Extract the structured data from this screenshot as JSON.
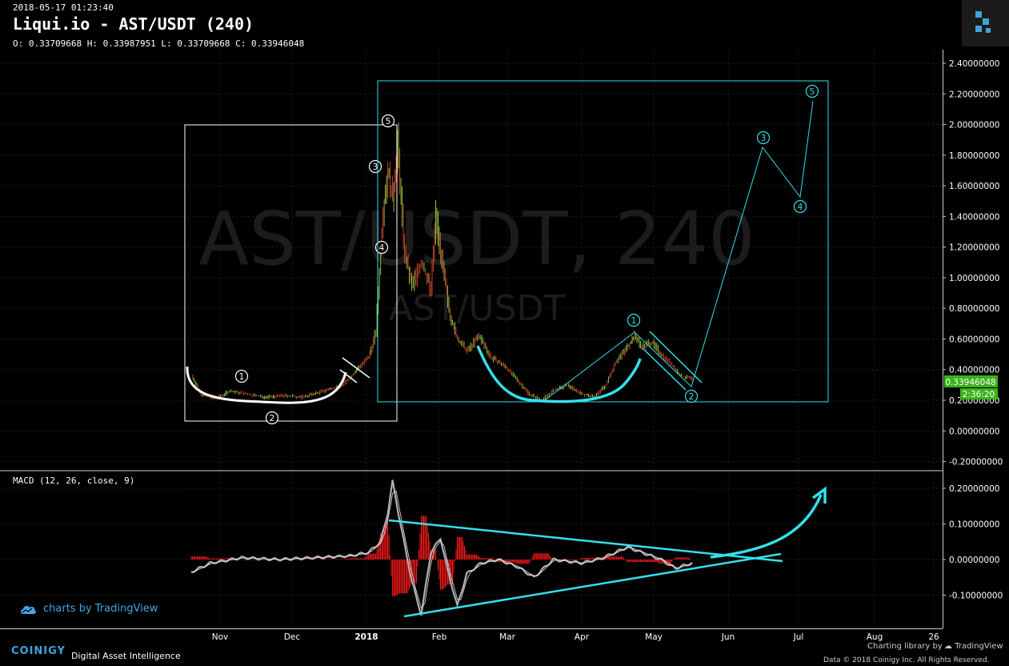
{
  "header": {
    "timestamp": "2018-05-17 01:23:40",
    "title": "Liqui.io - AST/USDT (240)",
    "ohlc": "O: 0.33709668 H: 0.33987951 L: 0.33709668 C: 0.33946048"
  },
  "watermark": {
    "main": "AST/USDT, 240",
    "sub": "AST/USDT"
  },
  "price_badge": {
    "value": "0.33946048",
    "countdown": "2:36:20",
    "color": "#3bb21a"
  },
  "macd_label": "MACD (12, 26, close, 9)",
  "footer": {
    "tv_badge": "charts by TradingView",
    "brand": "COINIGY",
    "tagline": "Digital Asset Intelligence",
    "charting_lib": "Charting library by",
    "tv_brand": "TradingView",
    "copyright": "Data © 2018  Coinigy Inc. All Rights Reserved."
  },
  "colors": {
    "background": "#000000",
    "annotation": "#33e0ec",
    "annotation_white": "#ffffff",
    "macd_hist": "#ff0000",
    "macd_line": "#b0b0b0"
  },
  "chart_data": [
    {
      "type": "candlestick",
      "x_ticks": [
        "Nov",
        "Dec",
        "2018",
        "Feb",
        "Mar",
        "Apr",
        "May",
        "Jun",
        "Jul",
        "Aug",
        "26"
      ],
      "y_ticks": [
        "2.40000000",
        "2.20000000",
        "2.00000000",
        "1.80000000",
        "1.60000000",
        "1.40000000",
        "1.20000000",
        "1.00000000",
        "0.80000000",
        "0.60000000",
        "0.40000000",
        "0.20000000",
        "0.00000000",
        "-0.20000000"
      ],
      "ylim": [
        -0.2,
        2.45
      ],
      "price_path": [
        {
          "d": "2017-10-20",
          "v": 0.36
        },
        {
          "d": "2017-10-24",
          "v": 0.24
        },
        {
          "d": "2017-10-30",
          "v": 0.21
        },
        {
          "d": "2017-11-05",
          "v": 0.26
        },
        {
          "d": "2017-11-12",
          "v": 0.24
        },
        {
          "d": "2017-11-20",
          "v": 0.22
        },
        {
          "d": "2017-11-28",
          "v": 0.23
        },
        {
          "d": "2017-12-05",
          "v": 0.22
        },
        {
          "d": "2017-12-12",
          "v": 0.25
        },
        {
          "d": "2017-12-18",
          "v": 0.28
        },
        {
          "d": "2017-12-22",
          "v": 0.3
        },
        {
          "d": "2017-12-26",
          "v": 0.36
        },
        {
          "d": "2017-12-29",
          "v": 0.42
        },
        {
          "d": "2018-01-02",
          "v": 0.48
        },
        {
          "d": "2018-01-05",
          "v": 0.65
        },
        {
          "d": "2018-01-08",
          "v": 1.45
        },
        {
          "d": "2018-01-10",
          "v": 1.7
        },
        {
          "d": "2018-01-12",
          "v": 1.5
        },
        {
          "d": "2018-01-14",
          "v": 1.88
        },
        {
          "d": "2018-01-17",
          "v": 1.15
        },
        {
          "d": "2018-01-20",
          "v": 0.95
        },
        {
          "d": "2018-01-24",
          "v": 1.1
        },
        {
          "d": "2018-01-28",
          "v": 0.92
        },
        {
          "d": "2018-01-30",
          "v": 1.42
        },
        {
          "d": "2018-02-02",
          "v": 1.05
        },
        {
          "d": "2018-02-05",
          "v": 0.75
        },
        {
          "d": "2018-02-08",
          "v": 0.6
        },
        {
          "d": "2018-02-12",
          "v": 0.52
        },
        {
          "d": "2018-02-17",
          "v": 0.62
        },
        {
          "d": "2018-02-22",
          "v": 0.48
        },
        {
          "d": "2018-02-28",
          "v": 0.42
        },
        {
          "d": "2018-03-05",
          "v": 0.33
        },
        {
          "d": "2018-03-10",
          "v": 0.24
        },
        {
          "d": "2018-03-15",
          "v": 0.2
        },
        {
          "d": "2018-03-20",
          "v": 0.26
        },
        {
          "d": "2018-03-26",
          "v": 0.3
        },
        {
          "d": "2018-04-01",
          "v": 0.24
        },
        {
          "d": "2018-04-06",
          "v": 0.22
        },
        {
          "d": "2018-04-11",
          "v": 0.3
        },
        {
          "d": "2018-04-15",
          "v": 0.45
        },
        {
          "d": "2018-04-20",
          "v": 0.55
        },
        {
          "d": "2018-04-23",
          "v": 0.62
        },
        {
          "d": "2018-04-26",
          "v": 0.55
        },
        {
          "d": "2018-04-30",
          "v": 0.58
        },
        {
          "d": "2018-05-04",
          "v": 0.5
        },
        {
          "d": "2018-05-08",
          "v": 0.44
        },
        {
          "d": "2018-05-12",
          "v": 0.36
        },
        {
          "d": "2018-05-17",
          "v": 0.34
        }
      ],
      "last_price": 0.33946048
    },
    {
      "type": "macd",
      "y_ticks": [
        "0.20000000",
        "0.10000000",
        "0.00000000",
        "-0.10000000"
      ],
      "ylim": [
        -0.17,
        0.22
      ],
      "macd_path": [
        {
          "d": "2017-10-20",
          "v": -0.035
        },
        {
          "d": "2017-10-28",
          "v": -0.01
        },
        {
          "d": "2017-11-10",
          "v": 0.005
        },
        {
          "d": "2017-11-25",
          "v": 0.0
        },
        {
          "d": "2017-12-10",
          "v": 0.005
        },
        {
          "d": "2017-12-25",
          "v": 0.01
        },
        {
          "d": "2018-01-02",
          "v": 0.02
        },
        {
          "d": "2018-01-07",
          "v": 0.05
        },
        {
          "d": "2018-01-10",
          "v": 0.13
        },
        {
          "d": "2018-01-12",
          "v": 0.22
        },
        {
          "d": "2018-01-15",
          "v": 0.11
        },
        {
          "d": "2018-01-20",
          "v": -0.06
        },
        {
          "d": "2018-01-24",
          "v": -0.155
        },
        {
          "d": "2018-01-28",
          "v": 0.02
        },
        {
          "d": "2018-02-01",
          "v": 0.06
        },
        {
          "d": "2018-02-04",
          "v": -0.03
        },
        {
          "d": "2018-02-08",
          "v": -0.13
        },
        {
          "d": "2018-02-12",
          "v": -0.04
        },
        {
          "d": "2018-02-18",
          "v": -0.01
        },
        {
          "d": "2018-02-25",
          "v": 0.0
        },
        {
          "d": "2018-03-05",
          "v": -0.02
        },
        {
          "d": "2018-03-12",
          "v": -0.05
        },
        {
          "d": "2018-03-20",
          "v": 0.0
        },
        {
          "d": "2018-04-01",
          "v": -0.01
        },
        {
          "d": "2018-04-10",
          "v": 0.005
        },
        {
          "d": "2018-04-20",
          "v": 0.035
        },
        {
          "d": "2018-04-26",
          "v": 0.02
        },
        {
          "d": "2018-05-04",
          "v": 0.0
        },
        {
          "d": "2018-05-10",
          "v": -0.025
        },
        {
          "d": "2018-05-17",
          "v": -0.01
        }
      ]
    }
  ],
  "annotations": {
    "white_wave": [
      "1",
      "2",
      "3",
      "4",
      "5"
    ],
    "cyan_wave": [
      "1",
      "2",
      "3",
      "4",
      "5"
    ]
  }
}
